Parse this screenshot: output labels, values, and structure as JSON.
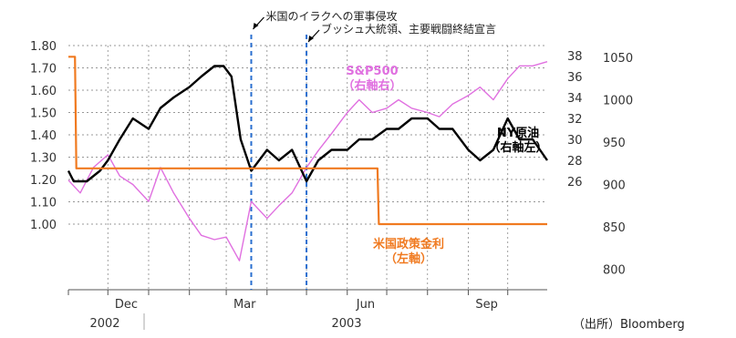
{
  "chart_data": {
    "type": "line",
    "title": "",
    "x_axis": {
      "ticks": [
        "Dec",
        "Mar",
        "Jun",
        "Sep"
      ],
      "years": [
        "2002",
        "2003"
      ],
      "range": [
        "2002-11-01",
        "2003-10-31"
      ]
    },
    "y_axes": [
      {
        "id": "left",
        "ticks": [
          "1.80",
          "1.70",
          "1.60",
          "1.50",
          "1.40",
          "1.30",
          "1.20",
          "1.10",
          "1.00"
        ],
        "range": [
          0.95,
          1.8
        ]
      },
      {
        "id": "right_inner",
        "ticks": [
          "38",
          "36",
          "34",
          "32",
          "30",
          "28",
          "26"
        ],
        "range": [
          24,
          38
        ]
      },
      {
        "id": "right_outer",
        "ticks": [
          "1050",
          "1000",
          "950",
          "900",
          "850",
          "800"
        ],
        "range": [
          780,
          1050
        ]
      }
    ],
    "events": [
      {
        "date": "2003-03-20",
        "label": "米国のイラクへの軍事侵攻"
      },
      {
        "date": "2003-05-01",
        "label": "ブッシュ大統領、主要戦闘終結宣言"
      }
    ],
    "series": [
      {
        "name": "S&P500",
        "label_lines": [
          "S&P500",
          "（右軸右）"
        ],
        "axis": "right_outer",
        "color": "#e070e0",
        "x": [
          "2002-11-01",
          "2002-11-10",
          "2002-11-20",
          "2002-12-01",
          "2002-12-10",
          "2002-12-20",
          "2003-01-01",
          "2003-01-10",
          "2003-01-20",
          "2003-02-01",
          "2003-02-10",
          "2003-02-20",
          "2003-03-01",
          "2003-03-11",
          "2003-03-20",
          "2003-04-01",
          "2003-04-10",
          "2003-04-20",
          "2003-05-01",
          "2003-05-10",
          "2003-05-20",
          "2003-06-01",
          "2003-06-10",
          "2003-06-20",
          "2003-07-01",
          "2003-07-10",
          "2003-07-20",
          "2003-08-01",
          "2003-08-10",
          "2003-08-20",
          "2003-09-01",
          "2003-09-10",
          "2003-09-20",
          "2003-10-01",
          "2003-10-10",
          "2003-10-20",
          "2003-10-31"
        ],
        "values": [
          905,
          890,
          920,
          935,
          910,
          900,
          880,
          920,
          890,
          860,
          840,
          835,
          838,
          810,
          880,
          860,
          875,
          890,
          920,
          940,
          960,
          985,
          1000,
          985,
          990,
          1000,
          990,
          985,
          980,
          995,
          1005,
          1015,
          1000,
          1025,
          1040,
          1040,
          1045
        ]
      },
      {
        "name": "NY原油",
        "label_lines": [
          "NY原油",
          "（右軸左）"
        ],
        "axis": "right_inner",
        "color": "#000000",
        "x": [
          "2002-11-01",
          "2002-11-05",
          "2002-11-15",
          "2002-11-25",
          "2002-12-01",
          "2002-12-10",
          "2002-12-20",
          "2003-01-01",
          "2003-01-10",
          "2003-01-20",
          "2003-02-01",
          "2003-02-10",
          "2003-02-20",
          "2003-02-27",
          "2003-03-05",
          "2003-03-12",
          "2003-03-20",
          "2003-04-01",
          "2003-04-10",
          "2003-04-20",
          "2003-05-01",
          "2003-05-10",
          "2003-05-20",
          "2003-06-01",
          "2003-06-10",
          "2003-06-20",
          "2003-07-01",
          "2003-07-10",
          "2003-07-20",
          "2003-08-01",
          "2003-08-10",
          "2003-08-20",
          "2003-09-01",
          "2003-09-10",
          "2003-09-20",
          "2003-10-01",
          "2003-10-10",
          "2003-10-20",
          "2003-10-31"
        ],
        "values": [
          27,
          26,
          26,
          27,
          28,
          30,
          32,
          31,
          33,
          34,
          35,
          36,
          37,
          37,
          36,
          30,
          27,
          29,
          28,
          29,
          26,
          28,
          29,
          29,
          30,
          30,
          31,
          31,
          32,
          32,
          31,
          31,
          29,
          28,
          29,
          32,
          30,
          30,
          28
        ]
      },
      {
        "name": "米国政策金利",
        "label_lines": [
          "米国政策金利",
          "（左軸）"
        ],
        "axis": "left",
        "color": "#f07a20",
        "x": [
          "2002-11-01",
          "2002-11-06",
          "2002-11-07",
          "2003-06-24",
          "2003-06-25",
          "2003-10-31"
        ],
        "values": [
          1.75,
          1.75,
          1.25,
          1.25,
          1.0,
          1.0
        ]
      }
    ]
  },
  "source": "（出所）Bloomberg"
}
